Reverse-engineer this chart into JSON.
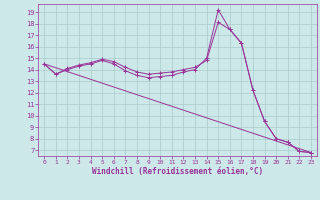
{
  "xlabel": "Windchill (Refroidissement éolien,°C)",
  "bg_color": "#cce8e8",
  "grid_color": "#aacccc",
  "line_color": "#993399",
  "marker": "+",
  "xlim": [
    -0.5,
    23.5
  ],
  "ylim": [
    6.5,
    19.7
  ],
  "yticks": [
    7,
    8,
    9,
    10,
    11,
    12,
    13,
    14,
    15,
    16,
    17,
    18,
    19
  ],
  "xticks": [
    0,
    1,
    2,
    3,
    4,
    5,
    6,
    7,
    8,
    9,
    10,
    11,
    12,
    13,
    14,
    15,
    16,
    17,
    18,
    19,
    20,
    21,
    22,
    23
  ],
  "lines": [
    {
      "x": [
        0,
        1,
        2,
        3,
        4,
        5,
        6,
        7,
        8,
        9,
        10,
        11,
        12,
        13,
        14,
        15,
        16,
        17,
        18,
        19,
        20,
        21,
        22,
        23
      ],
      "y": [
        14.5,
        13.6,
        14.0,
        14.3,
        14.5,
        14.8,
        14.5,
        13.9,
        13.5,
        13.3,
        13.4,
        13.5,
        13.8,
        14.0,
        15.0,
        19.2,
        17.5,
        16.3,
        12.2,
        9.5,
        8.0,
        7.7,
        6.9,
        6.8
      ],
      "has_marker": true
    },
    {
      "x": [
        0,
        1,
        2,
        3,
        4,
        5,
        6,
        7,
        8,
        9,
        10,
        11,
        12,
        13,
        14,
        15,
        16,
        17,
        18,
        19,
        20,
        21,
        22,
        23
      ],
      "y": [
        14.5,
        13.6,
        14.1,
        14.4,
        14.6,
        14.9,
        14.7,
        14.2,
        13.8,
        13.6,
        13.7,
        13.8,
        14.0,
        14.2,
        14.8,
        18.1,
        17.5,
        16.3,
        12.2,
        9.5,
        8.0,
        7.7,
        6.9,
        6.8
      ],
      "has_marker": true
    },
    {
      "x": [
        0,
        23
      ],
      "y": [
        14.5,
        6.8
      ],
      "has_marker": false
    }
  ]
}
